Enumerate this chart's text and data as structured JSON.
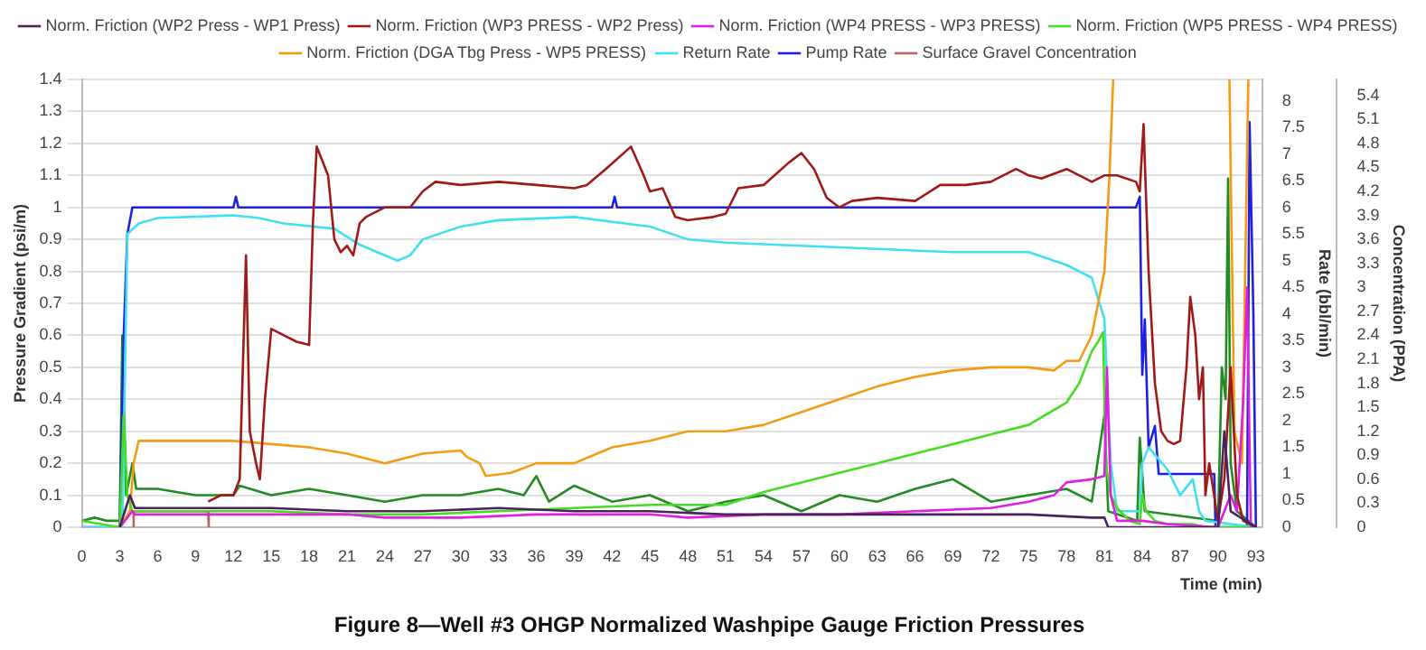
{
  "chart_data": {
    "type": "line",
    "title": "Figure 8—Well #3 OHGP Normalized Washpipe Gauge Friction Pressures",
    "xlabel": "Time (min)",
    "ylabel": "Pressure Gradient (psi/m)",
    "y2label": "Rate (bbl/min)",
    "y3label": "Concentration (PPA)",
    "xlim": [
      0,
      93.5
    ],
    "xticks": [
      0,
      3,
      6,
      9,
      12,
      15,
      18,
      21,
      24,
      27,
      30,
      33,
      36,
      39,
      42,
      45,
      48,
      51,
      54,
      57,
      60,
      63,
      66,
      69,
      72,
      75,
      78,
      81,
      84,
      87,
      90,
      93
    ],
    "ylim": [
      0,
      1.4
    ],
    "yticks": [
      0,
      0.1,
      0.2,
      0.3,
      0.4,
      0.5,
      0.6,
      0.7,
      0.8,
      0.9,
      1,
      1.1,
      1.2,
      1.3,
      1.4
    ],
    "y2lim": [
      0,
      8.4
    ],
    "y2ticks": [
      0,
      0.5,
      1,
      1.5,
      2,
      2.5,
      3,
      3.5,
      4,
      4.5,
      5,
      5.5,
      6,
      6.5,
      7,
      7.5,
      8
    ],
    "y3lim": [
      0,
      5.6
    ],
    "y3ticks": [
      0,
      0.3,
      0.6,
      0.9,
      1.2,
      1.5,
      1.8,
      2.1,
      2.4,
      2.7,
      3,
      3.3,
      3.6,
      3.9,
      4.2,
      4.5,
      4.8,
      5.1,
      5.4
    ],
    "grid": "y",
    "legend": "top",
    "marker": "none",
    "line_style": "solid",
    "series": [
      {
        "name": "Norm. Friction (WP2 Press - WP1 Press)",
        "color": "#4a235a",
        "x": [
          3,
          3.8,
          4.2,
          9,
          15,
          21,
          27,
          33,
          39,
          45,
          51,
          57,
          63,
          69,
          75,
          80,
          81,
          81.3,
          90,
          90.5,
          91,
          93
        ],
        "values": [
          0,
          0.1,
          0.06,
          0.06,
          0.06,
          0.05,
          0.05,
          0.06,
          0.05,
          0.05,
          0.04,
          0.04,
          0.04,
          0.04,
          0.04,
          0.03,
          0.03,
          0,
          0,
          0.3,
          0.05,
          0
        ]
      },
      {
        "name": "Norm. Friction (WP3 PRESS - WP2 Press)",
        "color": "#a01818",
        "x": [
          10,
          11,
          12,
          12.5,
          13,
          13.3,
          13.8,
          14.1,
          14.5,
          15,
          16,
          17,
          18,
          18.3,
          18.6,
          19,
          19.5,
          20,
          20.5,
          21,
          21.5,
          22,
          22.5,
          24,
          26,
          27,
          28,
          30,
          33,
          36,
          39,
          40,
          41.5,
          43.5,
          44.5,
          45,
          46,
          47,
          48,
          50,
          51,
          52,
          54,
          56,
          57,
          58,
          59,
          60,
          61,
          63,
          66,
          68,
          70,
          72,
          74,
          75,
          76,
          78,
          80,
          81,
          82,
          83.5,
          83.8,
          84.1,
          84.5,
          85,
          85.5,
          86,
          86.5,
          87,
          87.5,
          87.8,
          88.2,
          88.5,
          88.8,
          89,
          89.3,
          90,
          90.5,
          91,
          91.5,
          92,
          93
        ],
        "values": [
          0.08,
          0.1,
          0.1,
          0.15,
          0.85,
          0.3,
          0.2,
          0.15,
          0.4,
          0.62,
          0.6,
          0.58,
          0.57,
          0.95,
          1.19,
          1.15,
          1.1,
          0.9,
          0.86,
          0.88,
          0.85,
          0.95,
          0.97,
          1,
          1,
          1.05,
          1.08,
          1.07,
          1.08,
          1.07,
          1.06,
          1.07,
          1.12,
          1.19,
          1.1,
          1.05,
          1.06,
          0.97,
          0.96,
          0.97,
          0.98,
          1.06,
          1.07,
          1.14,
          1.17,
          1.12,
          1.03,
          1,
          1.02,
          1.03,
          1.02,
          1.07,
          1.07,
          1.08,
          1.12,
          1.1,
          1.09,
          1.12,
          1.08,
          1.1,
          1.1,
          1.08,
          1.05,
          1.26,
          0.8,
          0.45,
          0.3,
          0.27,
          0.26,
          0.27,
          0.5,
          0.72,
          0.6,
          0.4,
          0.5,
          0.1,
          0.2,
          0.02,
          0.15,
          0.5,
          0.1,
          0.02,
          0
        ]
      },
      {
        "name": "Norm. Friction (WP4 PRESS - WP3 PRESS)",
        "color": "#e020e0",
        "x": [
          3,
          4,
          4.2,
          9,
          15,
          21,
          24,
          30,
          36,
          45,
          48,
          54,
          60,
          66,
          72,
          75,
          77,
          78,
          80,
          81,
          81.2,
          81.5,
          82,
          84,
          86,
          90,
          91,
          91.5,
          92,
          92.3,
          92.6,
          93
        ],
        "values": [
          0,
          0.05,
          0.04,
          0.04,
          0.04,
          0.04,
          0.03,
          0.03,
          0.04,
          0.04,
          0.03,
          0.04,
          0.04,
          0.05,
          0.06,
          0.08,
          0.1,
          0.14,
          0.15,
          0.16,
          0.5,
          0.1,
          0.02,
          0.02,
          0.01,
          0,
          0.1,
          0.05,
          0.4,
          0.75,
          0,
          0
        ]
      },
      {
        "name": "Norm. Friction (WP5 PRESS - WP4 PRESS)",
        "color": "#44dd22",
        "x": [
          0,
          3,
          3.3,
          3.6,
          4,
          9,
          15,
          21,
          27,
          33,
          39,
          45,
          48,
          51,
          54,
          57,
          60,
          63,
          66,
          69,
          72,
          75,
          78,
          79,
          80,
          80.5,
          80.9,
          81.1,
          81.5,
          82,
          83,
          83.8,
          84,
          84.3,
          85,
          86,
          88,
          89,
          93
        ],
        "values": [
          0.02,
          0,
          0.35,
          0.1,
          0.05,
          0.05,
          0.05,
          0.04,
          0.04,
          0.05,
          0.06,
          0.07,
          0.07,
          0.07,
          0.11,
          0.14,
          0.17,
          0.2,
          0.23,
          0.26,
          0.29,
          0.32,
          0.39,
          0.45,
          0.55,
          0.58,
          0.61,
          0.2,
          0.1,
          0.06,
          0.02,
          0.01,
          0.1,
          0.05,
          0.02,
          0.01,
          0.01,
          0,
          0
        ]
      },
      {
        "name": "Norm. Friction (DGA Tbg Press - WP5 PRESS)",
        "color": "#f39c12",
        "x": [
          3,
          3.8,
          4.1,
          4.5,
          9,
          12,
          15,
          18,
          21,
          24,
          27,
          30,
          30.5,
          31.5,
          32,
          34,
          36,
          39,
          42,
          45,
          48,
          51,
          54,
          57,
          60,
          63,
          66,
          69,
          72,
          75,
          77,
          78,
          79,
          80,
          81,
          81.4,
          81.7,
          81.8,
          90.8,
          90.9,
          91.3,
          91.9,
          92.4
        ],
        "values": [
          0,
          0.05,
          0.2,
          0.27,
          0.27,
          0.27,
          0.26,
          0.25,
          0.23,
          0.2,
          0.23,
          0.24,
          0.22,
          0.2,
          0.16,
          0.17,
          0.2,
          0.2,
          0.25,
          0.27,
          0.3,
          0.3,
          0.32,
          0.36,
          0.4,
          0.44,
          0.47,
          0.49,
          0.5,
          0.5,
          0.49,
          0.52,
          0.52,
          0.6,
          0.8,
          1.1,
          1.4,
          null,
          null,
          1.4,
          0.3,
          0.2,
          1.4
        ]
      },
      {
        "name": "Return Rate",
        "color": "#40e0f0",
        "axis": "y2",
        "x": [
          0,
          3.2,
          3.6,
          4.5,
          6,
          12,
          14,
          16,
          20,
          22,
          25,
          26,
          27,
          30,
          33,
          39,
          45,
          48,
          51,
          57,
          63,
          69,
          75,
          78,
          80,
          81,
          81.5,
          82,
          83.8,
          84,
          84.5,
          86,
          87,
          88,
          88.5,
          89,
          93
        ],
        "values": [
          0,
          0,
          5.5,
          5.7,
          5.8,
          5.85,
          5.8,
          5.7,
          5.6,
          5.3,
          5.0,
          5.1,
          5.4,
          5.64,
          5.76,
          5.82,
          5.64,
          5.4,
          5.34,
          5.28,
          5.22,
          5.16,
          5.16,
          4.92,
          4.68,
          3.9,
          1.2,
          0.3,
          0.3,
          1.2,
          1.5,
          1.08,
          0.6,
          0.9,
          0.3,
          0.12,
          0
        ]
      },
      {
        "name": "Pump Rate",
        "color": "#2020e0",
        "axis": "y2",
        "x": [
          0,
          3,
          3.3,
          3.6,
          4,
          12,
          12.2,
          12.4,
          42,
          42.2,
          42.4,
          83.5,
          83.8,
          84,
          84.2,
          84.5,
          85,
          85.3,
          89.7,
          89.8,
          92.3,
          92.5,
          92.8,
          93
        ],
        "values": [
          0,
          0,
          3.5,
          5.5,
          6,
          6,
          6.2,
          6,
          6,
          6.2,
          6,
          6,
          6.2,
          2.86,
          3.9,
          1.5,
          1.9,
          1,
          1,
          0,
          0,
          7.6,
          4,
          0
        ]
      },
      {
        "name": "Surface Gravel Concentration",
        "color": "#c06060",
        "axis": "y3",
        "x": [
          4,
          4.1,
          10,
          10.05
        ],
        "values": [
          0,
          0.2,
          0.2,
          0
        ]
      },
      {
        "color": "#228b22",
        "x": [
          0,
          1,
          2,
          3,
          3.2,
          3.5,
          4,
          4.3,
          6,
          9,
          12,
          12.5,
          15,
          18,
          21,
          24,
          27,
          30,
          33,
          35,
          36,
          37,
          39,
          42,
          45,
          48,
          51,
          54,
          57,
          60,
          63,
          66,
          69,
          72,
          75,
          78,
          80,
          81,
          81.3,
          83.6,
          83.8,
          84.2,
          90,
          90.3,
          90.6,
          90.8,
          91,
          91.5,
          93
        ],
        "values": [
          0.02,
          0.03,
          0.02,
          0.02,
          0.6,
          0.1,
          0.2,
          0.12,
          0.12,
          0.1,
          0.1,
          0.13,
          0.1,
          0.12,
          0.1,
          0.08,
          0.1,
          0.1,
          0.12,
          0.1,
          0.16,
          0.08,
          0.13,
          0.08,
          0.1,
          0.05,
          0.08,
          0.1,
          0.05,
          0.1,
          0.08,
          0.12,
          0.15,
          0.08,
          0.1,
          0.12,
          0.08,
          0.35,
          0.05,
          0.02,
          0.28,
          0.05,
          0.02,
          0.5,
          0.4,
          1.09,
          0.2,
          0.05,
          0
        ]
      }
    ]
  }
}
